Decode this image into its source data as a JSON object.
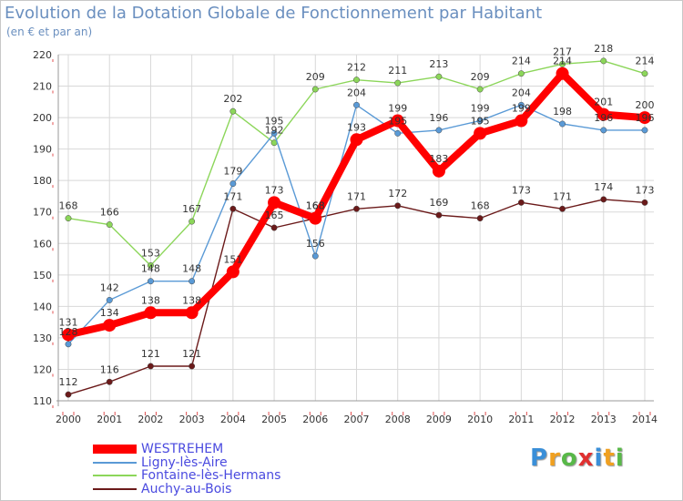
{
  "title": "Evolution de la Dotation Globale de Fonctionnement par Habitant",
  "subtitle": "(en € et par an)",
  "brand": {
    "text": "Proxiti",
    "letters": [
      "P",
      "r",
      "o",
      "x",
      "i",
      "t",
      "i"
    ],
    "colors": [
      "#3a8fd8",
      "#f0a020",
      "#58b848",
      "#e03030",
      "#3a8fd8",
      "#f0a020",
      "#58b848"
    ]
  },
  "chart_data": {
    "type": "line",
    "title": "Evolution de la Dotation Globale de Fonctionnement par Habitant",
    "subtitle": "(en € et par an)",
    "xlabel": "",
    "ylabel": "",
    "ylim": [
      110,
      220
    ],
    "yticks": [
      110,
      120,
      130,
      140,
      150,
      160,
      170,
      180,
      190,
      200,
      210,
      220
    ],
    "grid": true,
    "legend_position": "bottom-left",
    "categories": [
      "2000",
      "2001",
      "2002",
      "2003",
      "2004",
      "2005",
      "2006",
      "2007",
      "2008",
      "2009",
      "2010",
      "2011",
      "2012",
      "2013",
      "2014"
    ],
    "series": [
      {
        "name": "Auchy-au-Bois",
        "color": "#6b1a1a",
        "values": [
          112,
          116,
          121,
          121,
          171,
          165,
          168,
          171,
          172,
          169,
          168,
          173,
          171,
          174,
          173
        ],
        "labels": [
          "112",
          "116",
          "121",
          "121",
          "171",
          "165",
          "168",
          "171",
          "172",
          "169",
          "168",
          "173",
          "171",
          "174",
          "173"
        ]
      },
      {
        "name": "Fontaine-lès-Hermans",
        "color": "#8cd65a",
        "values": [
          168,
          166,
          153,
          167,
          202,
          192,
          209,
          212,
          211,
          213,
          209,
          214,
          217,
          218,
          214
        ],
        "labels": [
          "168",
          "166",
          "153",
          "167",
          "202",
          "192",
          "209",
          "212",
          "211",
          "213",
          "209",
          "214",
          "217",
          "218",
          "214"
        ]
      },
      {
        "name": "Ligny-lès-Aire",
        "color": "#5a9ad6",
        "values": [
          128,
          142,
          148,
          148,
          179,
          195,
          156,
          204,
          195,
          196,
          199,
          204,
          198,
          196,
          196
        ],
        "labels": [
          "128",
          "142",
          "148",
          "148",
          "179",
          "195",
          "156",
          "204",
          "195",
          "196",
          "199",
          "204",
          "198",
          "196",
          "196"
        ]
      },
      {
        "name": "WESTREHEM",
        "color": "#ff0000",
        "values": [
          131,
          134,
          138,
          138,
          151,
          173,
          168,
          193,
          199,
          183,
          195,
          199,
          214,
          201,
          200
        ],
        "labels": [
          "131",
          "134",
          "138",
          "138",
          "151",
          "173",
          "168",
          "193",
          "199",
          "183",
          "195",
          "199",
          "214",
          "201",
          "200"
        ]
      }
    ]
  },
  "legend": [
    {
      "name": "WESTREHEM",
      "color": "#ff0000",
      "width": 10
    },
    {
      "name": "Ligny-lès-Aire",
      "color": "#5a9ad6",
      "width": 2
    },
    {
      "name": "Fontaine-lès-Hermans",
      "color": "#8cd65a",
      "width": 2
    },
    {
      "name": "Auchy-au-Bois",
      "color": "#6b1a1a",
      "width": 2
    }
  ]
}
